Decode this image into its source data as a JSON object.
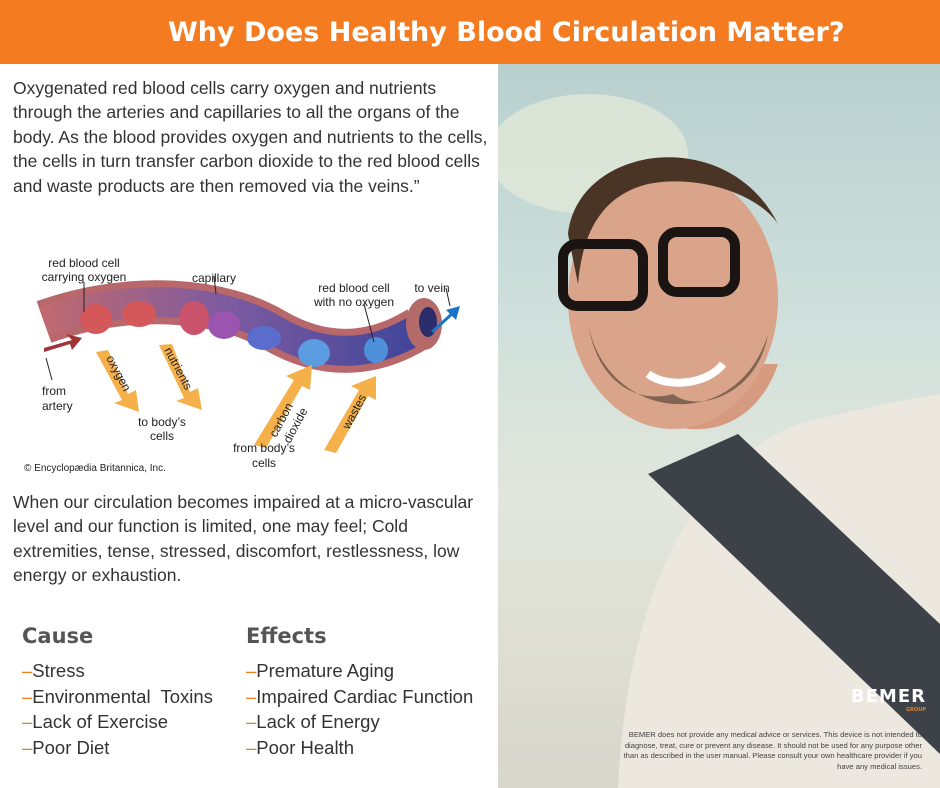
{
  "header": {
    "title": "Why Does Healthy Blood Circulation Matter?"
  },
  "intro": "Oxygenated red blood cells carry oxygen and nutrients through the arteries and capillaries to all the organs of the body. As the blood provides oxygen and nutrients to the cells, the cells in turn transfer carbon dioxide to the red blood cells and waste products are then removed via the veins.”",
  "diagram": {
    "labels": {
      "rbc_oxygen_1": "red blood cell",
      "rbc_oxygen_2": "carrying oxygen",
      "capillary": "capillary",
      "rbc_no_oxygen_1": "red blood cell",
      "rbc_no_oxygen_2": "with no oxygen",
      "to_vein": "to vein",
      "from_artery_1": "from",
      "from_artery_2": "artery",
      "oxygen": "oxygen",
      "nutrients": "nutrients",
      "to_cells_1": "to body’s",
      "to_cells_2": "cells",
      "carbon_1": "carbon",
      "carbon_2": "dioxide",
      "wastes": "wastes",
      "from_cells_1": "from body’s",
      "from_cells_2": "cells"
    },
    "credit": "© Encyclopædia Britannica, Inc."
  },
  "impaired": "When our circulation becomes impaired at a micro-vascular level and our function is limited, one may feel; Cold extremities, tense, stressed, discomfort, restlessness, low energy or exhaustion.",
  "cause": {
    "title": "Cause",
    "items": [
      "Stress",
      "Environmental  Toxins",
      "Lack of Exercise",
      "Poor Diet"
    ]
  },
  "effects": {
    "title": "Effects",
    "items": [
      "Premature Aging",
      "Impaired Cardiac Function",
      "Lack of Energy",
      "Poor Health"
    ]
  },
  "bullet": "–",
  "logo": {
    "text": "BEMER",
    "sub": "GROUP"
  },
  "disclaimer": "BEMER does not provide any medical advice or services. This device is not intended to diagnose, treat, cure or prevent any disease. It should not be used for any purpose other than as described in the user manual. Please consult your own healthcare provider if you have any medical issues.",
  "colors": {
    "accent": "#f47b20"
  }
}
